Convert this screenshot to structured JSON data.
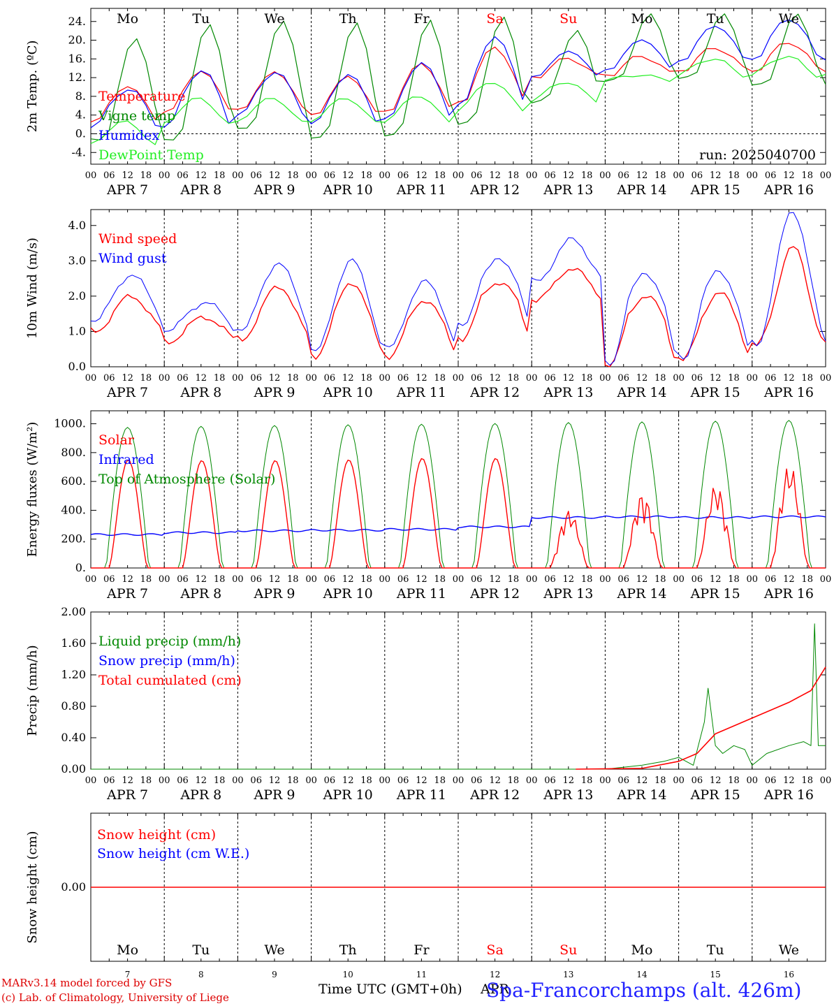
{
  "run_label": "run: 2025040700",
  "footer": {
    "model_line": "MARv3.14 model forced by GFS",
    "copyright_line": "(c) Lab. of Climatology, University of Liege",
    "time_axis_label": "Time UTC (GMT+0h)",
    "month_label": "APR",
    "location": "Spa-Francorchamps (alt. 426m)"
  },
  "colors": {
    "red": "#ff0000",
    "dark_green": "#008800",
    "blue": "#0000ff",
    "light_green": "#22ee22",
    "axis": "#000000"
  },
  "chart_data": [
    {
      "type": "line",
      "id": "temperature",
      "ylabel": "2m Temp. (ºC)",
      "ylim": [
        -6.5,
        26.8
      ],
      "yticks": [
        "24.",
        "20.",
        "16.",
        "12.",
        "8.",
        "4.",
        "0.",
        "-4."
      ],
      "ytick_values": [
        24,
        20,
        16,
        12,
        8,
        4,
        0,
        -4
      ],
      "zero_line": true,
      "day_names": [
        "Mo",
        "Tu",
        "We",
        "Th",
        "Fr",
        "Sa",
        "Su",
        "Mo",
        "Tu",
        "We"
      ],
      "weekend_days": [
        5,
        6
      ],
      "series": [
        {
          "name": "Temperature",
          "color": "red",
          "daily_min": [
            2.5,
            4.5,
            5.0,
            3.8,
            4.5,
            6.5,
            12.0,
            12.5,
            13.5,
            13.5
          ],
          "daily_max": [
            10.0,
            13.2,
            13.0,
            12.0,
            14.8,
            18.3,
            16.0,
            16.5,
            18.3,
            19.5
          ]
        },
        {
          "name": "Vigne temp",
          "color": "dark_green",
          "daily_min": [
            -1.0,
            -1.0,
            1.5,
            -0.5,
            0.0,
            2.5,
            7.0,
            11.5,
            12.0,
            10.5
          ],
          "daily_max": [
            20.8,
            23.8,
            24.5,
            24.0,
            24.5,
            25.0,
            22.0,
            25.5,
            25.5,
            25.5
          ]
        },
        {
          "name": "Humidex",
          "color": "blue",
          "daily_min": [
            1.5,
            1.5,
            4.0,
            2.0,
            3.0,
            6.0,
            12.0,
            13.5,
            15.5,
            16.0
          ],
          "daily_max": [
            9.5,
            13.5,
            13.0,
            12.5,
            15.0,
            20.5,
            17.5,
            20.0,
            23.0,
            24.5
          ]
        },
        {
          "name": "DewPoint Temp",
          "color": "light_green",
          "daily_min": [
            -2.5,
            2.0,
            2.5,
            2.5,
            2.5,
            5.0,
            7.0,
            11.5,
            12.5,
            12.5
          ],
          "daily_max": [
            2.5,
            7.5,
            7.5,
            7.5,
            8.0,
            11.0,
            11.0,
            12.5,
            16.0,
            16.5
          ]
        }
      ]
    },
    {
      "type": "line",
      "id": "wind",
      "ylabel": "10m Wind (m/s)",
      "ylim": [
        0,
        4.45
      ],
      "yticks": [
        "4.0",
        "3.0",
        "2.0",
        "1.0",
        "0.0"
      ],
      "ytick_values": [
        4,
        3,
        2,
        1,
        0
      ],
      "series": [
        {
          "name": "Wind speed",
          "color": "red",
          "daily_mean": [
            1.5,
            1.1,
            1.5,
            1.4,
            1.2,
            1.9,
            2.3,
            1.4,
            1.3,
            1.8
          ],
          "daily_peak": [
            2.0,
            1.4,
            2.3,
            2.4,
            1.9,
            2.4,
            2.8,
            2.0,
            2.1,
            3.4
          ],
          "daily_trough": [
            1.0,
            0.7,
            0.8,
            0.3,
            0.3,
            0.8,
            1.9,
            0.0,
            0.2,
            0.6
          ]
        },
        {
          "name": "Wind gust",
          "color": "blue",
          "daily_mean": [
            2.0,
            1.5,
            2.1,
            1.8,
            1.6,
            2.5,
            3.0,
            1.9,
            1.8,
            2.5
          ],
          "daily_peak": [
            2.6,
            1.8,
            2.9,
            3.0,
            2.4,
            3.0,
            3.6,
            2.6,
            2.7,
            4.4
          ],
          "daily_trough": [
            1.3,
            1.0,
            1.0,
            0.4,
            0.5,
            1.1,
            2.4,
            0.0,
            0.2,
            0.6
          ]
        }
      ]
    },
    {
      "type": "line",
      "id": "energy",
      "ylabel": "Energy fluxes (W/m²)",
      "ylim": [
        0,
        1090
      ],
      "yticks": [
        "1000.",
        "800.",
        "600.",
        "400.",
        "200.",
        "0."
      ],
      "ytick_values": [
        1000,
        800,
        600,
        400,
        200,
        0
      ],
      "series": [
        {
          "name": "Solar",
          "color": "red",
          "daily_peak": [
            750,
            745,
            745,
            750,
            760,
            760,
            400,
            520,
            580,
            720
          ]
        },
        {
          "name": "Infrared",
          "color": "blue",
          "daily_level": [
            232,
            245,
            258,
            262,
            268,
            285,
            350,
            355,
            350,
            355
          ]
        },
        {
          "name": "Top of Atmosphere (Solar)",
          "color": "dark_green",
          "daily_peak": [
            975,
            982,
            988,
            993,
            997,
            1002,
            1008,
            1013,
            1018,
            1023
          ]
        }
      ]
    },
    {
      "type": "line",
      "id": "precip",
      "ylabel": "Precip (mm/h)",
      "ylim": [
        0,
        2.0
      ],
      "yticks": [
        "2.00",
        "1.60",
        "1.20",
        "0.80",
        "0.40",
        "0.00"
      ],
      "ytick_values": [
        2.0,
        1.6,
        1.2,
        0.8,
        0.4,
        0.0
      ],
      "series": [
        {
          "name": "Liquid precip (mm/h)",
          "color": "dark_green",
          "points": [
            [
              6,
              0
            ],
            [
              7,
              0
            ],
            [
              7.5,
              0.05
            ],
            [
              7.8,
              0.1
            ],
            [
              8.0,
              0.15
            ],
            [
              8.2,
              0.05
            ],
            [
              8.35,
              0.6
            ],
            [
              8.4,
              1.03
            ],
            [
              8.5,
              0.3
            ],
            [
              8.6,
              0.2
            ],
            [
              8.75,
              0.3
            ],
            [
              8.9,
              0.25
            ],
            [
              9,
              0.05
            ],
            [
              9.2,
              0.2
            ],
            [
              9.5,
              0.3
            ],
            [
              9.7,
              0.35
            ],
            [
              9.8,
              0.3
            ],
            [
              9.85,
              1.85
            ],
            [
              9.9,
              0.3
            ],
            [
              10,
              0.3
            ]
          ]
        },
        {
          "name": "Snow precip (mm/h)",
          "color": "blue",
          "points": []
        },
        {
          "name": "Total cumulated (cm)",
          "color": "red",
          "points": [
            [
              6.6,
              0.0
            ],
            [
              7.5,
              0.01
            ],
            [
              8.0,
              0.1
            ],
            [
              8.25,
              0.2
            ],
            [
              8.5,
              0.45
            ],
            [
              9.0,
              0.65
            ],
            [
              9.5,
              0.85
            ],
            [
              9.8,
              1.0
            ],
            [
              10,
              1.3
            ]
          ]
        }
      ]
    },
    {
      "type": "line",
      "id": "snow",
      "ylabel": "Snow height (cm)",
      "yticks": [
        "0.00"
      ],
      "ytick_values": [
        0
      ],
      "series": [
        {
          "name": "Snow height (cm)",
          "color": "red",
          "values": [
            0
          ]
        },
        {
          "name": "Snow height (cm W.E.)",
          "color": "blue",
          "values": [
            0
          ]
        }
      ],
      "day_names": [
        "Mo",
        "Tu",
        "We",
        "Th",
        "Fr",
        "Sa",
        "Su",
        "Mo",
        "Tu",
        "We"
      ],
      "day_numbers": [
        "7",
        "8",
        "9",
        "10",
        "11",
        "12",
        "13",
        "14",
        "15",
        "16"
      ]
    }
  ],
  "x_axis": {
    "hour_labels": [
      "00",
      "06",
      "12",
      "18"
    ],
    "final_label": "00",
    "day_labels": [
      "APR  7",
      "APR  8",
      "APR  9",
      "APR 10",
      "APR 11",
      "APR 12",
      "APR 13",
      "APR 14",
      "APR 15",
      "APR 16"
    ]
  }
}
